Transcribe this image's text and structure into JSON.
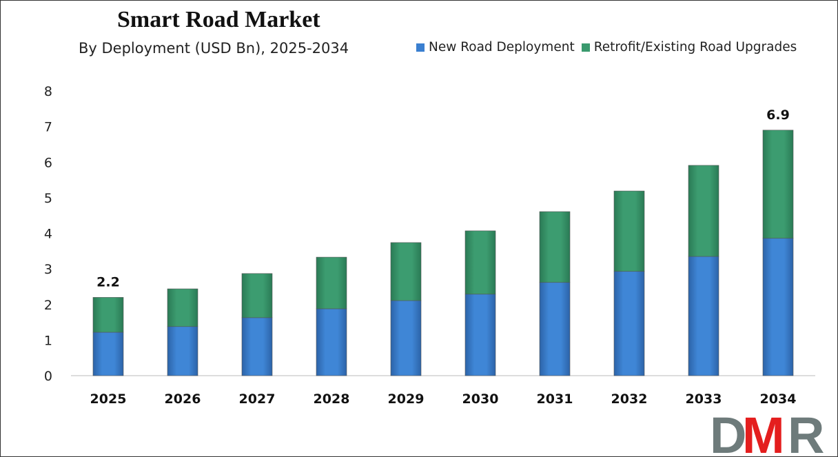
{
  "chart_data": {
    "type": "bar",
    "stacked": true,
    "title": "Smart Road Market",
    "subtitle": "By Deployment (USD Bn), 2025-2034",
    "xlabel": "",
    "ylabel": "",
    "ylim": [
      0,
      8
    ],
    "yticks": [
      0,
      1,
      2,
      3,
      4,
      5,
      6,
      7,
      8
    ],
    "grid": false,
    "legend_position": "top-right",
    "categories": [
      "2025",
      "2026",
      "2027",
      "2028",
      "2029",
      "2030",
      "2031",
      "2032",
      "2033",
      "2034"
    ],
    "series": [
      {
        "name": "New Road Deployment",
        "color": "#3a7fd0",
        "values": [
          1.22,
          1.38,
          1.63,
          1.88,
          2.11,
          2.29,
          2.62,
          2.93,
          3.35,
          3.86
        ]
      },
      {
        "name": "Retrofit/Existing Road Upgrades",
        "color": "#3a9a6e",
        "values": [
          0.98,
          1.06,
          1.24,
          1.45,
          1.63,
          1.78,
          1.99,
          2.26,
          2.56,
          3.04
        ]
      }
    ],
    "data_labels": [
      {
        "category": "2025",
        "text": "2.2"
      },
      {
        "category": "2034",
        "text": "6.9"
      }
    ]
  },
  "logo": {
    "text": "DMR",
    "colors": [
      "#6e7b7b",
      "#e41e1e"
    ]
  }
}
